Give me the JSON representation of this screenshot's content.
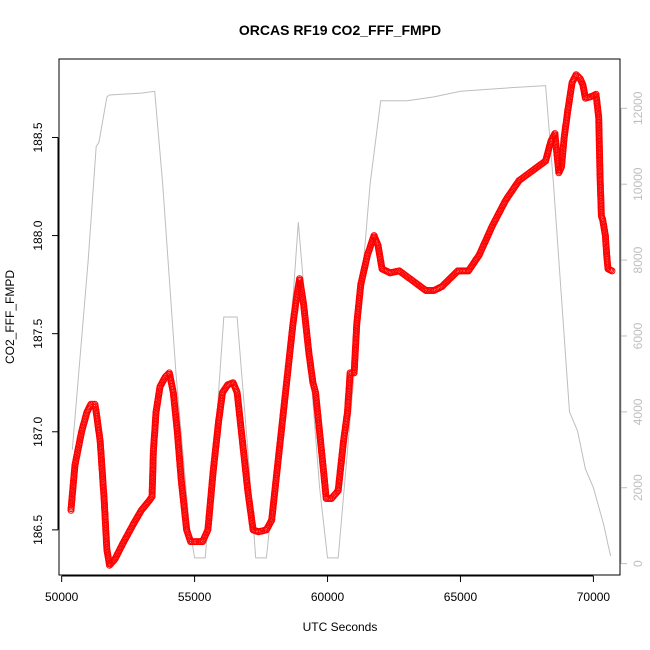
{
  "chart_data": {
    "type": "scatter",
    "title": "ORCAS RF19 CO2_FFF_FMPD",
    "xlabel": "UTC Seconds",
    "ylabel": "CO2_FFF_FMPD",
    "xlim": [
      49900,
      71000
    ],
    "ylim": [
      186.27,
      188.9
    ],
    "y2lim": [
      -300,
      13300
    ],
    "x_ticks": [
      "50000",
      "55000",
      "60000",
      "65000",
      "70000"
    ],
    "y_ticks": [
      "186.5",
      "187.0",
      "187.5",
      "188.0",
      "188.5"
    ],
    "y2_ticks": [
      "0",
      "2000",
      "4000",
      "6000",
      "8000",
      "10000",
      "12000"
    ],
    "colors": {
      "co2": "#ff0000",
      "altitude": "#bebebe",
      "axis": "#000000"
    },
    "series": [
      {
        "axis": "left",
        "style": "open-circles",
        "values": [
          [
            50350,
            186.6
          ],
          [
            50500,
            186.83
          ],
          [
            50750,
            187.0
          ],
          [
            50950,
            187.1
          ],
          [
            51100,
            187.14
          ],
          [
            51250,
            187.14
          ],
          [
            51300,
            187.1
          ],
          [
            51450,
            186.95
          ],
          [
            51600,
            186.65
          ],
          [
            51700,
            186.4
          ],
          [
            51800,
            186.32
          ],
          [
            52000,
            186.35
          ],
          [
            52300,
            186.43
          ],
          [
            52700,
            186.53
          ],
          [
            53000,
            186.6
          ],
          [
            53300,
            186.65
          ],
          [
            53400,
            186.67
          ],
          [
            53450,
            186.9
          ],
          [
            53550,
            187.1
          ],
          [
            53700,
            187.23
          ],
          [
            53900,
            187.28
          ],
          [
            54050,
            187.3
          ],
          [
            54200,
            187.2
          ],
          [
            54350,
            187.0
          ],
          [
            54500,
            186.75
          ],
          [
            54700,
            186.5
          ],
          [
            54850,
            186.44
          ],
          [
            55050,
            186.44
          ],
          [
            55300,
            186.44
          ],
          [
            55500,
            186.5
          ],
          [
            55700,
            186.8
          ],
          [
            55900,
            187.05
          ],
          [
            56050,
            187.2
          ],
          [
            56250,
            187.24
          ],
          [
            56450,
            187.25
          ],
          [
            56600,
            187.2
          ],
          [
            56800,
            186.95
          ],
          [
            57000,
            186.7
          ],
          [
            57200,
            186.5
          ],
          [
            57400,
            186.49
          ],
          [
            57700,
            186.5
          ],
          [
            57900,
            186.55
          ],
          [
            58100,
            186.8
          ],
          [
            58300,
            187.05
          ],
          [
            58500,
            187.3
          ],
          [
            58700,
            187.55
          ],
          [
            58850,
            187.7
          ],
          [
            58950,
            187.78
          ],
          [
            59100,
            187.65
          ],
          [
            59300,
            187.4
          ],
          [
            59450,
            187.25
          ],
          [
            59550,
            187.2
          ],
          [
            59700,
            187.0
          ],
          [
            59850,
            186.8
          ],
          [
            59950,
            186.66
          ],
          [
            60150,
            186.66
          ],
          [
            60400,
            186.7
          ],
          [
            60600,
            186.95
          ],
          [
            60750,
            187.1
          ],
          [
            60850,
            187.3
          ],
          [
            61000,
            187.3
          ],
          [
            61100,
            187.55
          ],
          [
            61250,
            187.75
          ],
          [
            61500,
            187.9
          ],
          [
            61750,
            188.0
          ],
          [
            61900,
            187.95
          ],
          [
            62050,
            187.83
          ],
          [
            62350,
            187.81
          ],
          [
            62700,
            187.82
          ],
          [
            63000,
            187.79
          ],
          [
            63400,
            187.75
          ],
          [
            63700,
            187.72
          ],
          [
            64000,
            187.72
          ],
          [
            64300,
            187.74
          ],
          [
            64600,
            187.78
          ],
          [
            64900,
            187.82
          ],
          [
            65300,
            187.82
          ],
          [
            65700,
            187.9
          ],
          [
            66200,
            188.05
          ],
          [
            66700,
            188.18
          ],
          [
            67200,
            188.28
          ],
          [
            67700,
            188.33
          ],
          [
            68000,
            188.36
          ],
          [
            68200,
            188.38
          ],
          [
            68400,
            188.48
          ],
          [
            68550,
            188.52
          ],
          [
            68700,
            188.32
          ],
          [
            68800,
            188.35
          ],
          [
            68900,
            188.5
          ],
          [
            69050,
            188.65
          ],
          [
            69200,
            188.78
          ],
          [
            69350,
            188.82
          ],
          [
            69500,
            188.8
          ],
          [
            69600,
            188.77
          ],
          [
            69700,
            188.7
          ],
          [
            69950,
            188.71
          ],
          [
            70100,
            188.72
          ],
          [
            70200,
            188.6
          ],
          [
            70250,
            188.3
          ],
          [
            70300,
            188.1
          ],
          [
            70350,
            188.08
          ],
          [
            70450,
            188.0
          ],
          [
            70500,
            187.9
          ],
          [
            70550,
            187.83
          ],
          [
            70700,
            187.82
          ]
        ]
      },
      {
        "axis": "right",
        "style": "line",
        "values": [
          [
            50400,
            3000
          ],
          [
            51000,
            8000
          ],
          [
            51300,
            11000
          ],
          [
            51400,
            11100
          ],
          [
            51700,
            12300
          ],
          [
            51800,
            12350
          ],
          [
            53000,
            12400
          ],
          [
            53500,
            12450
          ],
          [
            53800,
            10000
          ],
          [
            54300,
            5000
          ],
          [
            54800,
            1000
          ],
          [
            55000,
            150
          ],
          [
            55400,
            150
          ],
          [
            55800,
            3500
          ],
          [
            56100,
            6500
          ],
          [
            56600,
            6500
          ],
          [
            57000,
            3000
          ],
          [
            57300,
            150
          ],
          [
            57700,
            150
          ],
          [
            58200,
            3500
          ],
          [
            58700,
            7000
          ],
          [
            58900,
            9000
          ],
          [
            59200,
            6500
          ],
          [
            59700,
            2000
          ],
          [
            60000,
            150
          ],
          [
            60400,
            150
          ],
          [
            61000,
            5000
          ],
          [
            61600,
            10000
          ],
          [
            62000,
            12200
          ],
          [
            63000,
            12200
          ],
          [
            64000,
            12300
          ],
          [
            65000,
            12450
          ],
          [
            66000,
            12500
          ],
          [
            67000,
            12550
          ],
          [
            68200,
            12600
          ],
          [
            68500,
            10000
          ],
          [
            68800,
            7000
          ],
          [
            69100,
            4000
          ],
          [
            69400,
            3500
          ],
          [
            69700,
            2500
          ],
          [
            70000,
            2000
          ],
          [
            70200,
            1500
          ],
          [
            70400,
            1000
          ],
          [
            70550,
            500
          ],
          [
            70650,
            200
          ]
        ]
      }
    ]
  }
}
